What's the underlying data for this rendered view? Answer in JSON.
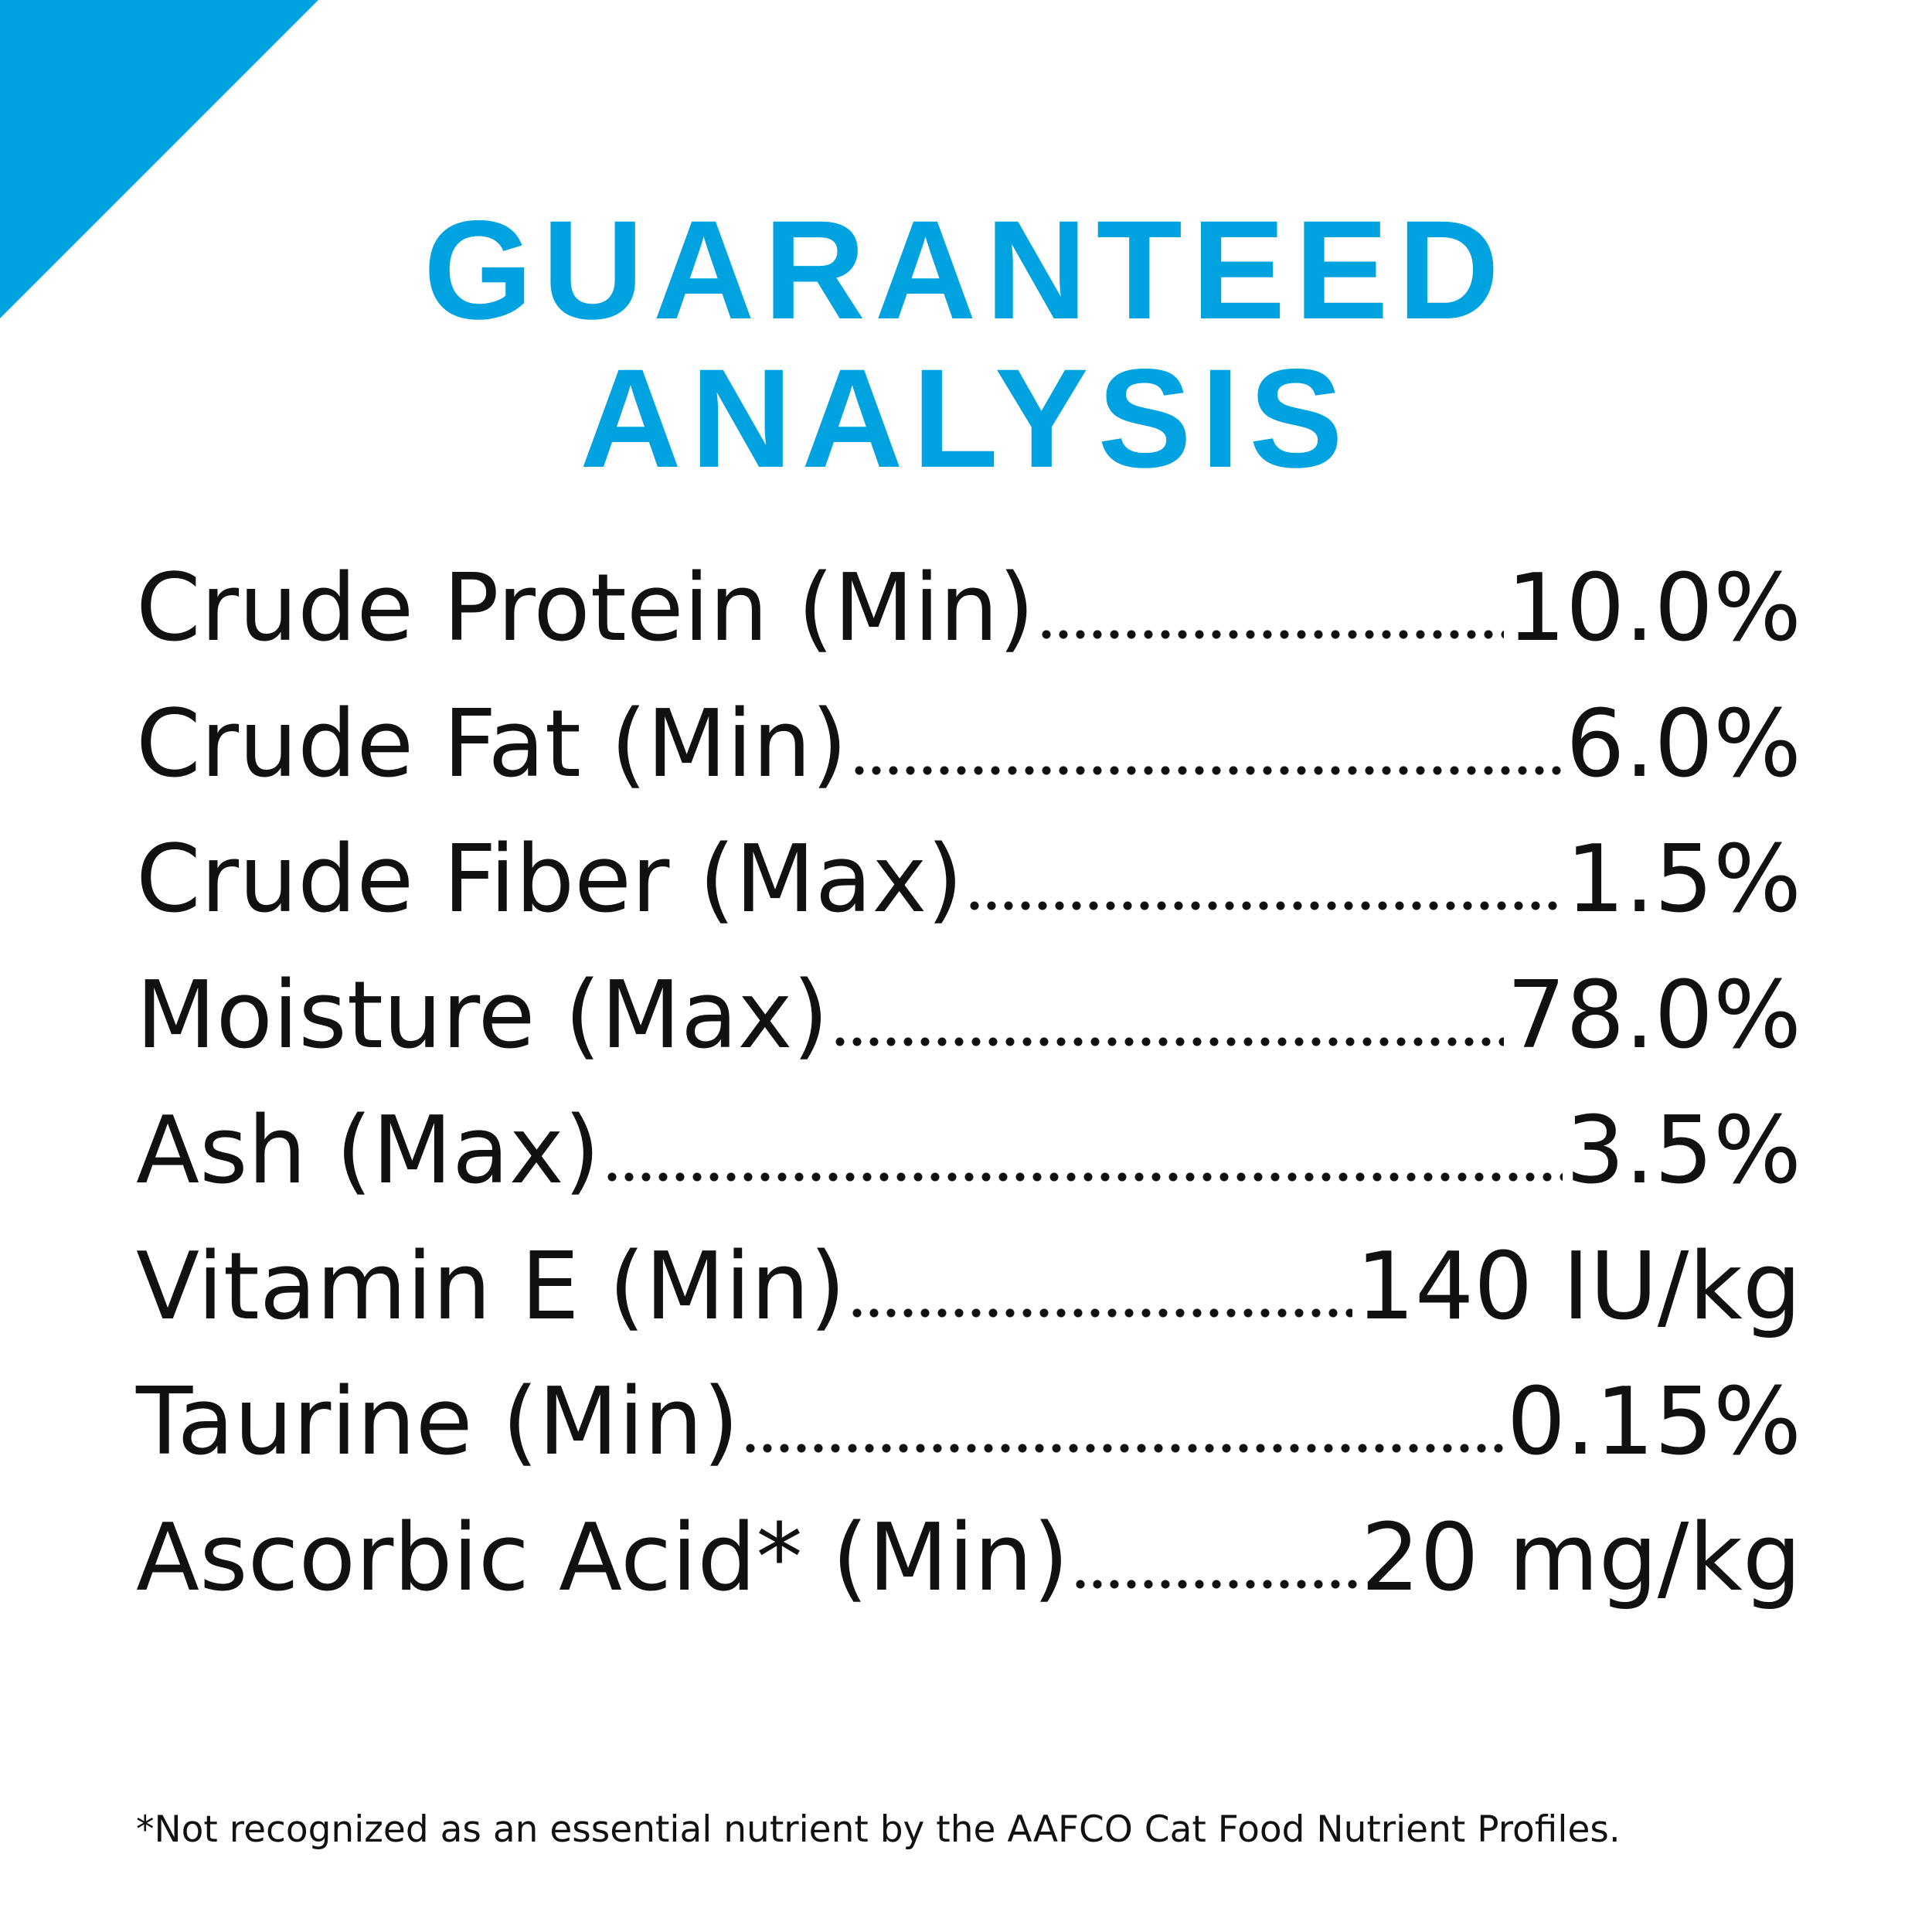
{
  "header": {
    "title_lines": [
      "GUARANTEED",
      "ANALYSIS"
    ]
  },
  "table": {
    "rows": [
      [
        "Crude Protein (Min)",
        "10.0%"
      ],
      [
        "Crude Fat (Min)",
        "6.0%"
      ],
      [
        "Crude Fiber (Max)",
        "1.5%"
      ],
      [
        "Moisture (Max)",
        "78.0%"
      ],
      [
        "Ash (Max)",
        "3.5%"
      ],
      [
        "Vitamin E (Min)",
        "140 IU/kg"
      ],
      [
        "Taurine (Min)",
        "0.15%"
      ],
      [
        "Ascorbic Acid* (Min)",
        "20 mg/kg"
      ]
    ]
  },
  "footnote": "*Not recognized as an essential nutrient by the AAFCO Cat Food Nutrient Profiles."
}
